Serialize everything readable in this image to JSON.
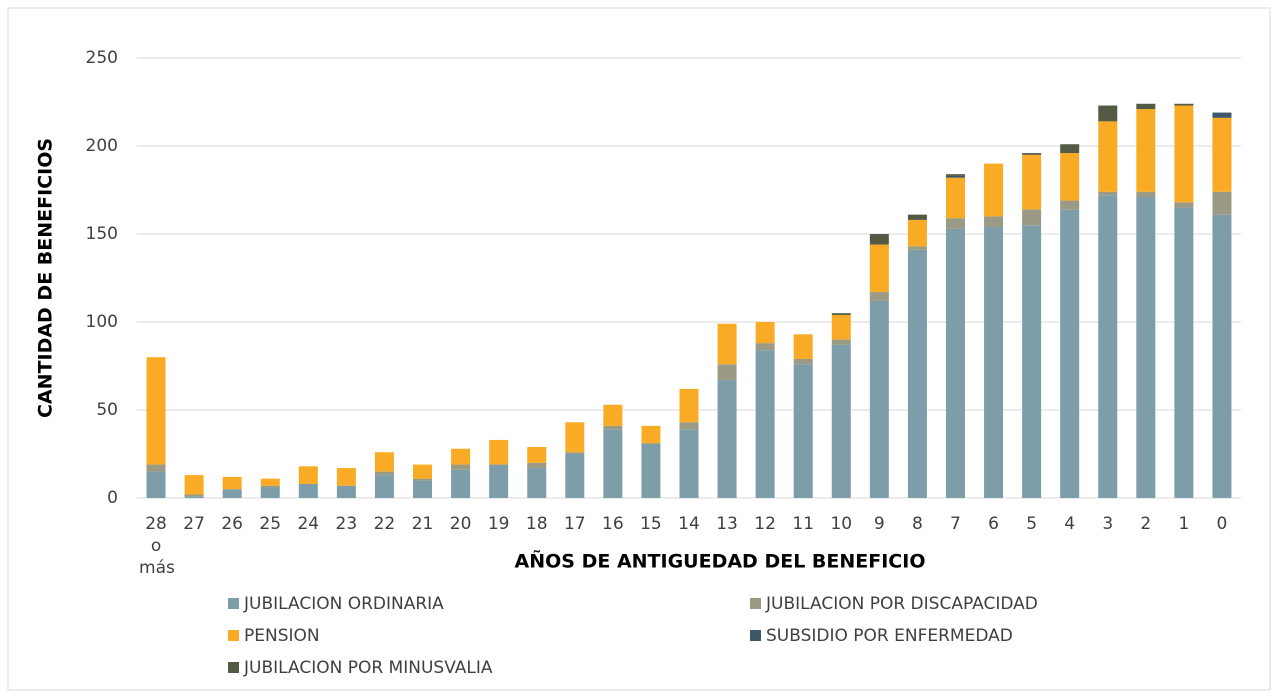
{
  "chart_data": {
    "type": "stacked_bar",
    "xlabel": "AÑOS DE ANTIGUEDAD DEL BENEFICIO",
    "ylabel": "CANTIDAD DE BENEFICIOS",
    "categories": [
      "28 o más",
      "27",
      "26",
      "25",
      "24",
      "23",
      "22",
      "21",
      "20",
      "19",
      "18",
      "17",
      "16",
      "15",
      "14",
      "13",
      "12",
      "11",
      "10",
      "9",
      "8",
      "7",
      "6",
      "5",
      "4",
      "3",
      "2",
      "1",
      "0"
    ],
    "ylim": [
      0,
      250
    ],
    "yticks": [
      0,
      50,
      100,
      150,
      200,
      250
    ],
    "grid": true,
    "series": [
      {
        "name": "JUBILACION ORDINARIA",
        "color": "#7d9ea8",
        "values": [
          15,
          1,
          5,
          6,
          8,
          7,
          13,
          10,
          16,
          19,
          17,
          25,
          39,
          31,
          39,
          67,
          84,
          76,
          87,
          112,
          141,
          153,
          154,
          155,
          164,
          172,
          171,
          165,
          161
        ]
      },
      {
        "name": "JUBILACION POR DISCAPACIDAD",
        "color": "#9b9a84",
        "values": [
          4,
          1,
          0,
          1,
          0,
          0,
          2,
          1,
          3,
          0,
          3,
          1,
          2,
          0,
          4,
          9,
          4,
          3,
          3,
          5,
          2,
          6,
          6,
          9,
          5,
          2,
          3,
          3,
          13
        ]
      },
      {
        "name": "PENSION",
        "color": "#f9ab25",
        "values": [
          61,
          11,
          7,
          4,
          10,
          10,
          11,
          8,
          9,
          14,
          9,
          17,
          12,
          10,
          19,
          23,
          12,
          14,
          14,
          27,
          15,
          23,
          30,
          31,
          27,
          40,
          47,
          55,
          42
        ]
      },
      {
        "name": "SUBSIDIO POR ENFERMEDAD",
        "color": "#3f5867",
        "values": [
          0,
          0,
          0,
          0,
          0,
          0,
          0,
          0,
          0,
          0,
          0,
          0,
          0,
          0,
          0,
          0,
          0,
          0,
          0,
          0,
          0,
          1,
          0,
          0,
          0,
          0,
          0,
          0,
          3
        ]
      },
      {
        "name": "JUBILACION POR MINUSVALIA",
        "color": "#545b45",
        "values": [
          0,
          0,
          0,
          0,
          0,
          0,
          0,
          0,
          0,
          0,
          0,
          0,
          0,
          0,
          0,
          0,
          0,
          0,
          1,
          6,
          3,
          1,
          0,
          1,
          5,
          9,
          3,
          1,
          0
        ]
      }
    ]
  }
}
